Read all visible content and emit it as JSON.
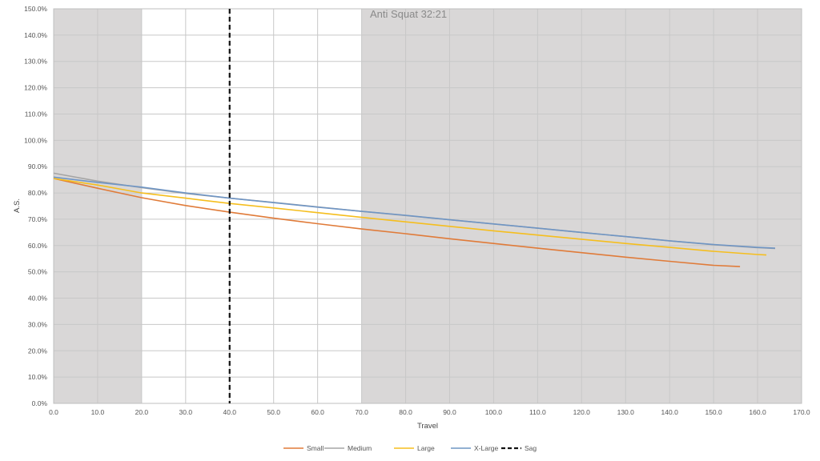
{
  "chart_data": {
    "type": "line",
    "title": "Anti Squat 32:21",
    "xlabel": "Travel",
    "ylabel": "A.S.",
    "xlim": [
      0,
      170
    ],
    "ylim": [
      0,
      150
    ],
    "x_ticks": [
      0,
      10,
      20,
      30,
      40,
      50,
      60,
      70,
      80,
      90,
      100,
      110,
      120,
      130,
      140,
      150,
      160,
      170
    ],
    "x_tick_labels": [
      "0.0",
      "10.0",
      "20.0",
      "30.0",
      "40.0",
      "50.0",
      "60.0",
      "70.0",
      "80.0",
      "90.0",
      "100.0",
      "110.0",
      "120.0",
      "130.0",
      "140.0",
      "150.0",
      "160.0",
      "170.0"
    ],
    "y_ticks": [
      0,
      10,
      20,
      30,
      40,
      50,
      60,
      70,
      80,
      90,
      100,
      110,
      120,
      130,
      140,
      150
    ],
    "y_tick_labels": [
      "0.0%",
      "10.0%",
      "20.0%",
      "30.0%",
      "40.0%",
      "50.0%",
      "60.0%",
      "70.0%",
      "80.0%",
      "90.0%",
      "100.0%",
      "110.0%",
      "120.0%",
      "130.0%",
      "140.0%",
      "150.0%"
    ],
    "grid": true,
    "shaded_regions": [
      {
        "x_start": 0,
        "x_end": 20,
        "color": "#d9d7d7"
      },
      {
        "x_start": 70,
        "x_end": 170,
        "color": "#d9d7d7"
      }
    ],
    "series": [
      {
        "name": "Small",
        "color": "#e07b39",
        "x": [
          0,
          10,
          20,
          30,
          40,
          50,
          60,
          70,
          80,
          90,
          100,
          110,
          120,
          130,
          140,
          150,
          156
        ],
        "y": [
          85.5,
          81.8,
          78.2,
          75.2,
          72.7,
          70.4,
          68.3,
          66.3,
          64.5,
          62.6,
          60.8,
          59.0,
          57.3,
          55.6,
          54.0,
          52.5,
          52.0
        ]
      },
      {
        "name": "Medium",
        "color": "#a5a5a5",
        "x": [
          0,
          10,
          20,
          30,
          40,
          50,
          60,
          70,
          80,
          90,
          100,
          110,
          120,
          130,
          140,
          150,
          160,
          164
        ],
        "y": [
          87.5,
          84.5,
          82.0,
          79.8,
          78.0,
          76.4,
          74.7,
          73.0,
          71.4,
          69.8,
          68.2,
          66.6,
          65.0,
          63.4,
          61.8,
          60.3,
          59.2,
          58.9
        ]
      },
      {
        "name": "Large",
        "color": "#f5be1e",
        "x": [
          0,
          10,
          20,
          30,
          40,
          50,
          60,
          70,
          80,
          90,
          100,
          110,
          120,
          130,
          140,
          150,
          160,
          162
        ],
        "y": [
          85.5,
          83.0,
          80.0,
          78.0,
          76.0,
          74.3,
          72.5,
          70.7,
          69.0,
          67.3,
          65.6,
          64.0,
          62.4,
          60.8,
          59.3,
          57.8,
          56.6,
          56.4
        ]
      },
      {
        "name": "X-Large",
        "color": "#6f95c4",
        "x": [
          0,
          10,
          20,
          30,
          40,
          50,
          60,
          70,
          80,
          90,
          100,
          110,
          120,
          130,
          140,
          150,
          160,
          164
        ],
        "y": [
          86.0,
          84.0,
          82.2,
          80.0,
          78.0,
          76.3,
          74.6,
          73.0,
          71.5,
          69.8,
          68.2,
          66.6,
          65.0,
          63.4,
          61.8,
          60.4,
          59.3,
          59.0
        ]
      }
    ],
    "reference_lines": [
      {
        "name": "Sag",
        "x": 40,
        "color": "#111111",
        "style": "dashed"
      }
    ],
    "legend": {
      "position": "bottom",
      "entries": [
        {
          "label": "Small",
          "color": "#e07b39",
          "style": "solid"
        },
        {
          "label": "Medium",
          "color": "#a5a5a5",
          "style": "solid"
        },
        {
          "label": "Large",
          "color": "#f5be1e",
          "style": "solid"
        },
        {
          "label": "X-Large",
          "color": "#6f95c4",
          "style": "solid"
        },
        {
          "label": "Sag",
          "color": "#111111",
          "style": "dashed"
        }
      ]
    }
  }
}
